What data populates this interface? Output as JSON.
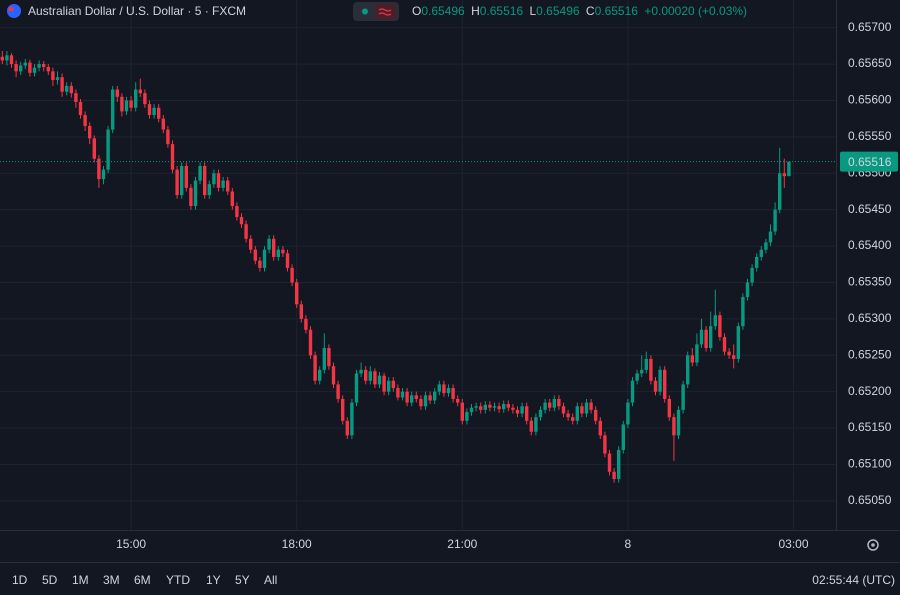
{
  "chart_data": {
    "type": "candlestick",
    "title": "Australian Dollar / U.S. Dollar · 5 · FXCM",
    "ohlc_labels": [
      "O",
      "H",
      "L",
      "C"
    ],
    "change": "+0.00020 (+0.03%)",
    "up_color": "#089981",
    "down_color": "#f23645",
    "grid": true,
    "ylim": [
      0.6501,
      0.65738
    ],
    "yticks": [
      {
        "value": 0.6505,
        "label": "0.65050"
      },
      {
        "value": 0.651,
        "label": "0.65100"
      },
      {
        "value": 0.6515,
        "label": "0.65150"
      },
      {
        "value": 0.652,
        "label": "0.65200"
      },
      {
        "value": 0.6525,
        "label": "0.65250"
      },
      {
        "value": 0.653,
        "label": "0.65300"
      },
      {
        "value": 0.6535,
        "label": "0.65350"
      },
      {
        "value": 0.654,
        "label": "0.65400"
      },
      {
        "value": 0.6545,
        "label": "0.65450"
      },
      {
        "value": 0.655,
        "label": "0.65500"
      },
      {
        "value": 0.6555,
        "label": "0.65550"
      },
      {
        "value": 0.656,
        "label": "0.65600"
      },
      {
        "value": 0.6565,
        "label": "0.65650"
      },
      {
        "value": 0.657,
        "label": "0.65700"
      }
    ],
    "categories": [
      null,
      null,
      null,
      null,
      null,
      null,
      null,
      null,
      null,
      null,
      null,
      null,
      null,
      null,
      null,
      null,
      null,
      null,
      null,
      null,
      null,
      null,
      null,
      null,
      null,
      null,
      null,
      null,
      "15:00",
      null,
      null,
      null,
      null,
      null,
      null,
      null,
      null,
      null,
      null,
      null,
      null,
      null,
      null,
      null,
      null,
      null,
      null,
      null,
      null,
      null,
      null,
      null,
      null,
      null,
      null,
      null,
      null,
      null,
      null,
      null,
      null,
      null,
      null,
      null,
      "18:00",
      null,
      null,
      null,
      null,
      null,
      null,
      null,
      null,
      null,
      null,
      null,
      null,
      null,
      null,
      null,
      null,
      null,
      null,
      null,
      null,
      null,
      null,
      null,
      null,
      null,
      null,
      null,
      null,
      null,
      null,
      null,
      null,
      null,
      null,
      null,
      "21:00",
      null,
      null,
      null,
      null,
      null,
      null,
      null,
      null,
      null,
      null,
      null,
      null,
      null,
      null,
      null,
      null,
      null,
      null,
      null,
      null,
      null,
      null,
      null,
      null,
      null,
      null,
      null,
      null,
      null,
      null,
      null,
      null,
      null,
      null,
      null,
      "8",
      null,
      null,
      null,
      null,
      null,
      null,
      null,
      null,
      null,
      null,
      null,
      null,
      null,
      null,
      null,
      null,
      null,
      null,
      null,
      null,
      null,
      null,
      null,
      null,
      null,
      null,
      null,
      null,
      null,
      null,
      null,
      null,
      null,
      null,
      null,
      "03:00"
    ],
    "open": [
      0.6566,
      0.65655,
      0.65662,
      0.6565,
      0.6564,
      0.65648,
      0.65652,
      0.65638,
      0.65645,
      0.6565,
      0.65646,
      0.6564,
      0.65628,
      0.65632,
      0.65612,
      0.6562,
      0.6561,
      0.65598,
      0.6558,
      0.65565,
      0.65548,
      0.6552,
      0.65492,
      0.65505,
      0.6556,
      0.65615,
      0.65605,
      0.65585,
      0.656,
      0.6559,
      0.65615,
      0.6561,
      0.65595,
      0.6558,
      0.6559,
      0.65575,
      0.6556,
      0.6554,
      0.65505,
      0.6547,
      0.6551,
      0.6548,
      0.65455,
      0.6549,
      0.6551,
      0.6547,
      0.65485,
      0.655,
      0.6548,
      0.6549,
      0.65475,
      0.65455,
      0.6544,
      0.6543,
      0.6541,
      0.65395,
      0.6538,
      0.6537,
      0.65395,
      0.6541,
      0.65385,
      0.65395,
      0.6539,
      0.6537,
      0.6535,
      0.6532,
      0.653,
      0.65285,
      0.6525,
      0.65215,
      0.6523,
      0.6526,
      0.65235,
      0.6521,
      0.6519,
      0.6516,
      0.6514,
      0.65185,
      0.65225,
      0.6523,
      0.65215,
      0.65228,
      0.6521,
      0.65222,
      0.652,
      0.65215,
      0.65205,
      0.65192,
      0.652,
      0.65185,
      0.65195,
      0.6519,
      0.6518,
      0.65195,
      0.65188,
      0.652,
      0.6521,
      0.65198,
      0.65205,
      0.6519,
      0.65185,
      0.6516,
      0.65172,
      0.65178,
      0.6518,
      0.65175,
      0.65182,
      0.65178,
      0.6518,
      0.65176,
      0.65183,
      0.65178,
      0.65175,
      0.6517,
      0.6518,
      0.6516,
      0.65145,
      0.65165,
      0.65175,
      0.65185,
      0.65178,
      0.6519,
      0.6518,
      0.6517,
      0.65165,
      0.6516,
      0.6518,
      0.6517,
      0.65185,
      0.65175,
      0.6516,
      0.6514,
      0.65115,
      0.6509,
      0.6508,
      0.6512,
      0.65155,
      0.65185,
      0.65215,
      0.65225,
      0.6523,
      0.65245,
      0.65215,
      0.652,
      0.6523,
      0.6519,
      0.65165,
      0.6514,
      0.65175,
      0.6521,
      0.6525,
      0.6524,
      0.65265,
      0.65285,
      0.6526,
      0.6529,
      0.65305,
      0.65275,
      0.65255,
      0.6525,
      0.65245,
      0.6529,
      0.6533,
      0.6535,
      0.6537,
      0.65385,
      0.65395,
      0.65405,
      0.6542,
      0.6545,
      0.655,
      0.65496,
      null
    ],
    "high": [
      0.65668,
      0.65668,
      0.65665,
      0.65655,
      0.65653,
      0.65657,
      0.65656,
      0.6565,
      0.65655,
      0.65654,
      0.6565,
      0.65645,
      0.6564,
      0.65637,
      0.65625,
      0.65625,
      0.65615,
      0.65602,
      0.65585,
      0.6557,
      0.65552,
      0.65525,
      0.6551,
      0.65565,
      0.6562,
      0.6562,
      0.6561,
      0.65605,
      0.65606,
      0.65625,
      0.6563,
      0.65615,
      0.656,
      0.65595,
      0.65595,
      0.6558,
      0.65565,
      0.65545,
      0.6551,
      0.65515,
      0.65515,
      0.65485,
      0.65495,
      0.65515,
      0.65515,
      0.6549,
      0.65505,
      0.65505,
      0.65495,
      0.65495,
      0.6548,
      0.6546,
      0.65445,
      0.65435,
      0.65415,
      0.654,
      0.65385,
      0.654,
      0.65415,
      0.65415,
      0.654,
      0.654,
      0.65395,
      0.65375,
      0.65355,
      0.65325,
      0.65305,
      0.6529,
      0.65255,
      0.65235,
      0.6528,
      0.65265,
      0.6524,
      0.65215,
      0.65195,
      0.65165,
      0.6519,
      0.6523,
      0.6524,
      0.65235,
      0.65235,
      0.65232,
      0.65227,
      0.65226,
      0.6522,
      0.6522,
      0.6521,
      0.65205,
      0.65205,
      0.652,
      0.652,
      0.65195,
      0.652,
      0.652,
      0.65205,
      0.65215,
      0.65215,
      0.6521,
      0.6521,
      0.65195,
      0.6519,
      0.65177,
      0.65183,
      0.65185,
      0.65185,
      0.65187,
      0.65187,
      0.65185,
      0.65185,
      0.65188,
      0.65188,
      0.65183,
      0.6518,
      0.65185,
      0.65185,
      0.65165,
      0.6517,
      0.6518,
      0.6519,
      0.6519,
      0.65195,
      0.65195,
      0.65185,
      0.65175,
      0.6517,
      0.65185,
      0.65185,
      0.6519,
      0.6519,
      0.6518,
      0.65165,
      0.65145,
      0.6512,
      0.65095,
      0.65125,
      0.6516,
      0.6519,
      0.6522,
      0.6523,
      0.6525,
      0.65255,
      0.6525,
      0.6522,
      0.65235,
      0.65235,
      0.65195,
      0.6517,
      0.6518,
      0.65215,
      0.65255,
      0.6526,
      0.6528,
      0.653,
      0.6529,
      0.6531,
      0.6534,
      0.6531,
      0.6528,
      0.6526,
      0.65265,
      0.65295,
      0.65335,
      0.65355,
      0.65375,
      0.6539,
      0.654,
      0.6541,
      0.6543,
      0.6546,
      0.65535,
      0.6552,
      0.65516,
      null
    ],
    "low": [
      0.6565,
      0.65648,
      0.65645,
      0.65632,
      0.65635,
      0.65643,
      0.65633,
      0.65633,
      0.6564,
      0.6564,
      0.65635,
      0.6562,
      0.65622,
      0.65605,
      0.65607,
      0.65604,
      0.6559,
      0.65575,
      0.65558,
      0.6554,
      0.65515,
      0.6548,
      0.65485,
      0.655,
      0.65555,
      0.65598,
      0.65578,
      0.6558,
      0.65585,
      0.65585,
      0.65605,
      0.6559,
      0.65575,
      0.65575,
      0.6557,
      0.65555,
      0.65535,
      0.655,
      0.65465,
      0.65465,
      0.65475,
      0.6545,
      0.6545,
      0.65485,
      0.65465,
      0.65465,
      0.6548,
      0.65475,
      0.65475,
      0.6547,
      0.6545,
      0.65435,
      0.65425,
      0.65405,
      0.6539,
      0.65375,
      0.65365,
      0.65365,
      0.6539,
      0.6538,
      0.6538,
      0.65385,
      0.65365,
      0.65345,
      0.65315,
      0.65295,
      0.6528,
      0.65245,
      0.6521,
      0.6521,
      0.65225,
      0.6523,
      0.65205,
      0.65185,
      0.65155,
      0.65135,
      0.65135,
      0.6518,
      0.6522,
      0.6521,
      0.6521,
      0.65205,
      0.65205,
      0.65195,
      0.65195,
      0.652,
      0.65188,
      0.65188,
      0.6518,
      0.6518,
      0.65185,
      0.65175,
      0.65175,
      0.65183,
      0.65183,
      0.65195,
      0.65193,
      0.65193,
      0.65185,
      0.6518,
      0.65155,
      0.65155,
      0.65167,
      0.65173,
      0.6517,
      0.6517,
      0.65173,
      0.65173,
      0.65171,
      0.65171,
      0.65173,
      0.6517,
      0.65165,
      0.65165,
      0.65155,
      0.6514,
      0.6514,
      0.6516,
      0.6517,
      0.65173,
      0.65173,
      0.65175,
      0.65165,
      0.6516,
      0.65155,
      0.65155,
      0.65165,
      0.65165,
      0.6517,
      0.65155,
      0.65135,
      0.6511,
      0.65085,
      0.65075,
      0.65075,
      0.65115,
      0.6515,
      0.6518,
      0.6521,
      0.6522,
      0.65225,
      0.6521,
      0.65195,
      0.65195,
      0.65185,
      0.6516,
      0.65105,
      0.65135,
      0.6517,
      0.65205,
      0.65235,
      0.65235,
      0.6526,
      0.65255,
      0.65255,
      0.65285,
      0.6527,
      0.6525,
      0.65245,
      0.65232,
      0.6524,
      0.65285,
      0.65325,
      0.65345,
      0.65365,
      0.6538,
      0.6539,
      0.654,
      0.65415,
      0.65445,
      0.6548,
      0.65496,
      null
    ],
    "close": [
      0.65655,
      0.65662,
      0.6565,
      0.6564,
      0.65648,
      0.65652,
      0.65638,
      0.65645,
      0.6565,
      0.65646,
      0.6564,
      0.65628,
      0.65632,
      0.65612,
      0.6562,
      0.6561,
      0.65598,
      0.6558,
      0.65565,
      0.65548,
      0.6552,
      0.65492,
      0.65505,
      0.6556,
      0.65615,
      0.65605,
      0.65585,
      0.656,
      0.6559,
      0.65615,
      0.6561,
      0.65595,
      0.6558,
      0.6559,
      0.65575,
      0.6556,
      0.6554,
      0.65505,
      0.6547,
      0.6551,
      0.6548,
      0.65455,
      0.6549,
      0.6551,
      0.6547,
      0.65485,
      0.655,
      0.6548,
      0.6549,
      0.65475,
      0.65455,
      0.6544,
      0.6543,
      0.6541,
      0.65395,
      0.6538,
      0.6537,
      0.65395,
      0.6541,
      0.65385,
      0.65395,
      0.6539,
      0.6537,
      0.6535,
      0.6532,
      0.653,
      0.65285,
      0.6525,
      0.65215,
      0.6523,
      0.6526,
      0.65235,
      0.6521,
      0.6519,
      0.6516,
      0.6514,
      0.65185,
      0.65225,
      0.6523,
      0.65215,
      0.65228,
      0.6521,
      0.65222,
      0.652,
      0.65215,
      0.65205,
      0.65192,
      0.652,
      0.65185,
      0.65195,
      0.6519,
      0.6518,
      0.65195,
      0.65188,
      0.652,
      0.6521,
      0.65198,
      0.65205,
      0.6519,
      0.65185,
      0.6516,
      0.65172,
      0.65178,
      0.6518,
      0.65175,
      0.65182,
      0.65178,
      0.6518,
      0.65176,
      0.65183,
      0.65178,
      0.65175,
      0.6517,
      0.6518,
      0.6516,
      0.65145,
      0.65165,
      0.65175,
      0.65185,
      0.65178,
      0.6519,
      0.6518,
      0.6517,
      0.65165,
      0.6516,
      0.6518,
      0.6517,
      0.65185,
      0.65175,
      0.6516,
      0.6514,
      0.65115,
      0.6509,
      0.6508,
      0.6512,
      0.65155,
      0.65185,
      0.65215,
      0.65225,
      0.6523,
      0.65245,
      0.65215,
      0.652,
      0.6523,
      0.6519,
      0.65165,
      0.6514,
      0.65175,
      0.6521,
      0.6525,
      0.6524,
      0.65265,
      0.65285,
      0.6526,
      0.6529,
      0.65305,
      0.65275,
      0.65255,
      0.6525,
      0.65245,
      0.6529,
      0.6533,
      0.6535,
      0.6537,
      0.65385,
      0.65395,
      0.65405,
      0.6542,
      0.6545,
      0.655,
      0.65496,
      0.65516,
      null
    ]
  },
  "toolbar": {
    "ranges": [
      "1D",
      "5D",
      "1M",
      "3M",
      "6M",
      "YTD",
      "1Y",
      "5Y",
      "All"
    ],
    "clock": "02:55:44 (UTC)"
  }
}
